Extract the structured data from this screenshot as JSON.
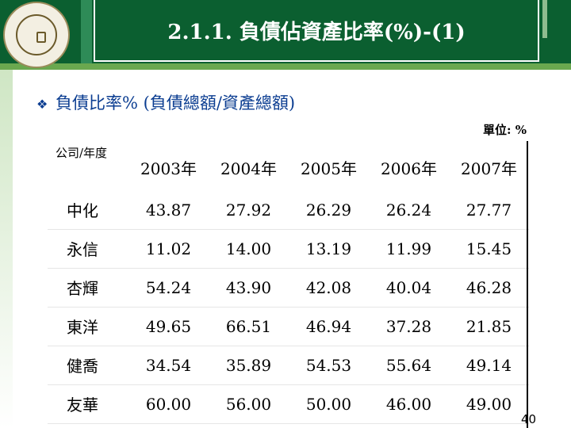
{
  "slide": {
    "title": "2.1.1. 負債佔資產比率(%)-(1)",
    "bullet_text": "負債比率% (負債總額/資產總額)",
    "unit": "單位: %",
    "page_number": "40"
  },
  "table": {
    "corner_label": "公司/年度",
    "years": [
      "2003年",
      "2004年",
      "2005年",
      "2006年",
      "2007年"
    ],
    "rows": [
      {
        "company": "中化",
        "values": [
          "43.87",
          "27.92",
          "26.29",
          "26.24",
          "27.77"
        ]
      },
      {
        "company": "永信",
        "values": [
          "11.02",
          "14.00",
          "13.19",
          "11.99",
          "15.45"
        ]
      },
      {
        "company": "杏輝",
        "values": [
          "54.24",
          "43.90",
          "42.08",
          "40.04",
          "46.28"
        ]
      },
      {
        "company": "東洋",
        "values": [
          "49.65",
          "66.51",
          "46.94",
          "37.28",
          "21.85"
        ]
      },
      {
        "company": "健喬",
        "values": [
          "34.54",
          "35.89",
          "54.53",
          "55.64",
          "49.14"
        ]
      },
      {
        "company": "友華",
        "values": [
          "60.00",
          "56.00",
          "50.00",
          "46.00",
          "49.00"
        ]
      }
    ]
  },
  "colors": {
    "header_green": "#0b5f30",
    "bullet_blue": "#0b3d91"
  },
  "icons": {
    "bullet": "diamond-bullet-icon",
    "logo": "university-seal-icon"
  }
}
